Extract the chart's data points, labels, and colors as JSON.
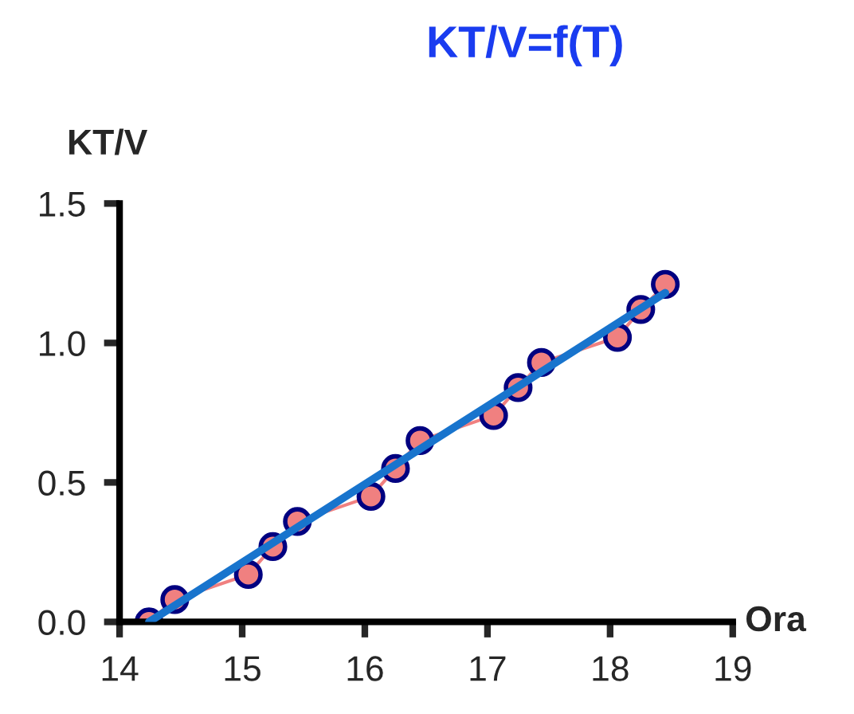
{
  "chart_data": {
    "type": "line",
    "title": "KT/V=f(T)",
    "xlabel": "Ora",
    "ylabel": "KT/V",
    "xlim": [
      14,
      19
    ],
    "xticks": [
      14,
      15,
      16,
      17,
      18,
      19
    ],
    "ylim": [
      0,
      1.5
    ],
    "yticks": [
      {
        "value": 0,
        "label": "0.0"
      },
      {
        "value": 0.5,
        "label": "0.5"
      },
      {
        "value": 1.0,
        "label": "1.0"
      },
      {
        "value": 1.5,
        "label": "1.5"
      }
    ],
    "grid": false,
    "legend": false,
    "marker": "circle",
    "line_style": "solid",
    "series": [
      {
        "color": "#f08080",
        "x": [
          14.24,
          14.45,
          15.05,
          15.25,
          15.45,
          16.05,
          16.25,
          16.45,
          17.05,
          17.25,
          17.44,
          18.06,
          18.25,
          18.45
        ],
        "values": [
          0.0,
          0.08,
          0.17,
          0.27,
          0.36,
          0.45,
          0.55,
          0.65,
          0.74,
          0.84,
          0.93,
          1.02,
          1.12,
          1.21
        ]
      },
      {
        "type": "line",
        "color": "#1874cd",
        "marker": "none",
        "x": [
          14.24,
          18.45
        ],
        "values": [
          0.0,
          1.18
        ]
      }
    ]
  }
}
